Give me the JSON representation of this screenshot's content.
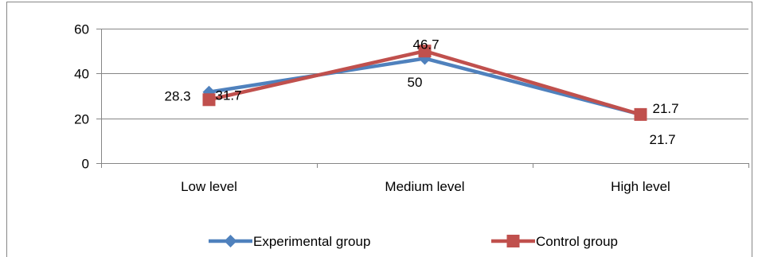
{
  "chart_data": {
    "type": "line",
    "title": "",
    "xlabel": "",
    "ylabel": "",
    "categories": [
      "Low level",
      "Medium level",
      "High level"
    ],
    "ylim": [
      0,
      60
    ],
    "yticks": [
      0,
      20,
      40,
      60
    ],
    "grid": true,
    "legend_position": "bottom",
    "series": [
      {
        "name": "Experimental group",
        "values": [
          31.7,
          46.7,
          21.7
        ],
        "labels": [
          "31.7",
          "46.7",
          "21.7"
        ],
        "color": "#4f81bd",
        "marker": "diamond"
      },
      {
        "name": "Control group",
        "values": [
          28.3,
          50,
          21.7
        ],
        "labels": [
          "28.3",
          "50",
          "21.7"
        ],
        "color": "#c0504d",
        "marker": "square"
      }
    ]
  }
}
